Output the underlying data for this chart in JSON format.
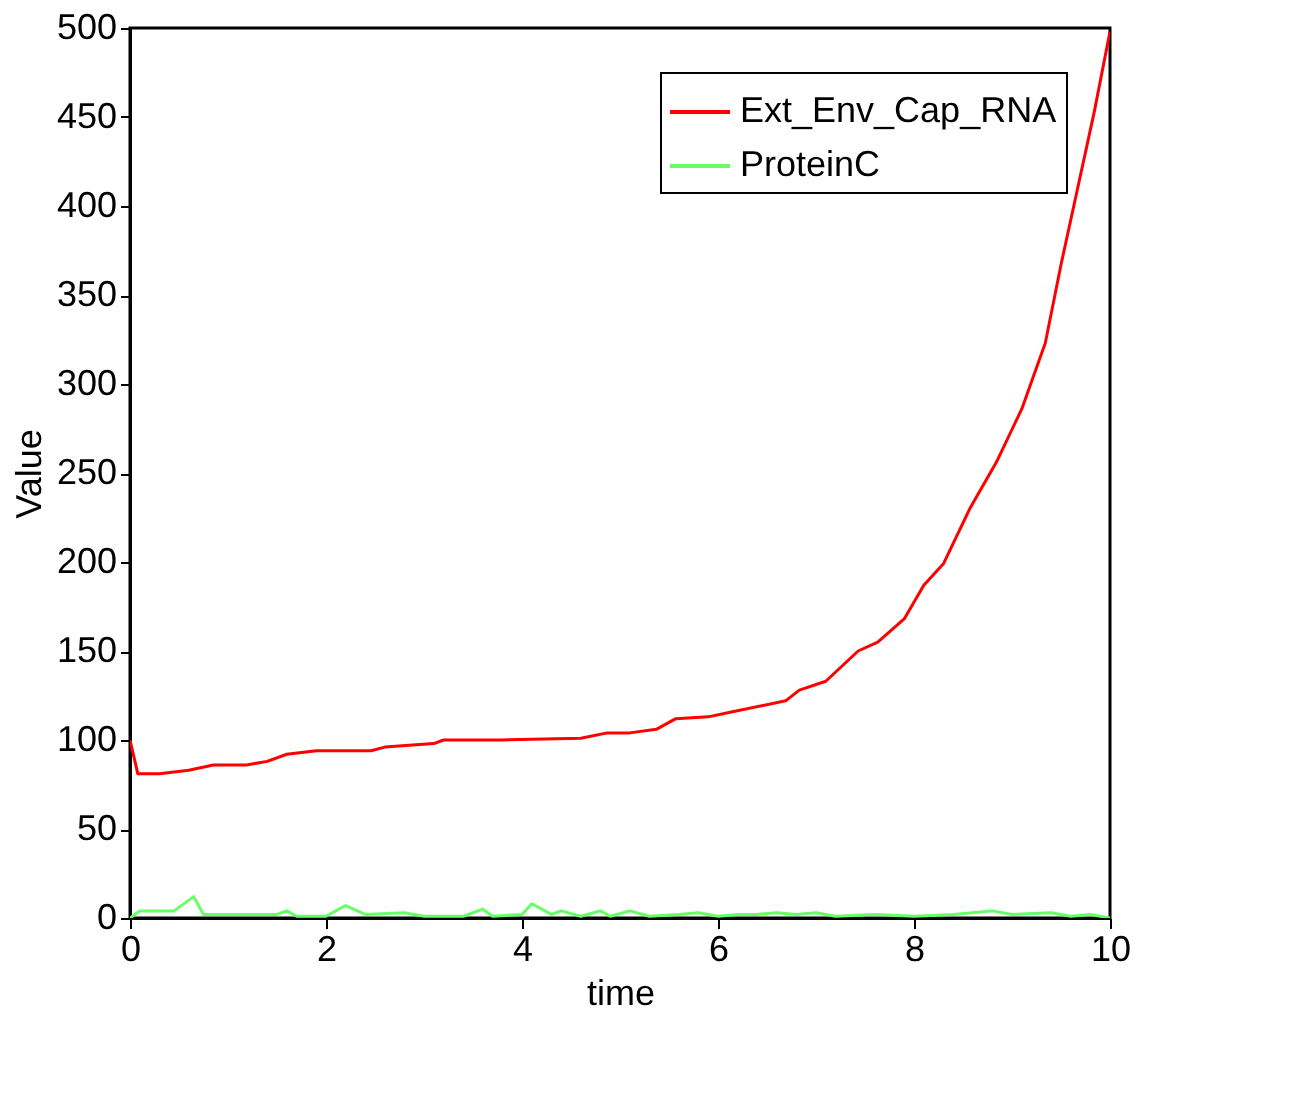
{
  "chart_data": {
    "type": "line",
    "xlabel": "time",
    "ylabel": "Value",
    "xlim": [
      0,
      10
    ],
    "ylim": [
      0,
      500
    ],
    "xticks": [
      0,
      2,
      4,
      6,
      8,
      10
    ],
    "yticks": [
      0,
      50,
      100,
      150,
      200,
      250,
      300,
      350,
      400,
      450,
      500
    ],
    "grid": false,
    "legend": "top right",
    "marker": "none",
    "line_style": "solid",
    "series": [
      {
        "name": "Ext_Env_Cap_RNA",
        "color": "#ff0000",
        "x": [
          0,
          0.08,
          0.3,
          0.6,
          0.85,
          1.19,
          1.4,
          1.6,
          1.9,
          2.46,
          2.6,
          3.1,
          3.2,
          3.8,
          4.6,
          4.87,
          5.1,
          5.37,
          5.57,
          5.9,
          6.16,
          6.69,
          6.83,
          7.1,
          7.43,
          7.63,
          7.9,
          8.1,
          8.3,
          8.57,
          8.84,
          9.1,
          9.34,
          9.5,
          9.67,
          9.84,
          10
        ],
        "values": [
          100,
          81,
          81,
          83,
          86,
          86,
          88,
          92,
          94,
          94,
          96,
          98,
          100,
          100,
          101,
          104,
          104,
          106,
          112,
          113,
          116,
          122,
          128,
          133,
          150,
          155,
          168,
          187,
          199,
          230,
          256,
          286,
          323,
          367,
          410,
          453,
          498
        ]
      },
      {
        "name": "ProteinC",
        "color": "#66ff66",
        "x": [
          0,
          0.1,
          0.45,
          0.65,
          0.75,
          1.1,
          1.5,
          1.6,
          1.7,
          2.0,
          2.2,
          2.4,
          2.8,
          3.0,
          3.4,
          3.6,
          3.7,
          4.0,
          4.1,
          4.3,
          4.4,
          4.6,
          4.8,
          4.9,
          5.1,
          5.3,
          5.6,
          5.8,
          6.0,
          6.2,
          6.4,
          6.6,
          6.8,
          7.0,
          7.2,
          7.6,
          8.0,
          8.4,
          8.8,
          9.0,
          9.4,
          9.6,
          9.8,
          10
        ],
        "values": [
          0,
          4,
          4,
          12,
          2,
          2,
          2,
          4,
          1,
          1,
          7,
          2,
          3,
          1,
          1,
          5,
          1,
          2,
          8,
          2,
          4,
          1,
          4,
          1,
          4,
          1,
          2,
          3,
          1,
          2,
          2,
          3,
          2,
          3,
          1,
          2,
          1,
          2,
          4,
          2,
          3,
          1,
          2,
          0
        ]
      }
    ]
  }
}
